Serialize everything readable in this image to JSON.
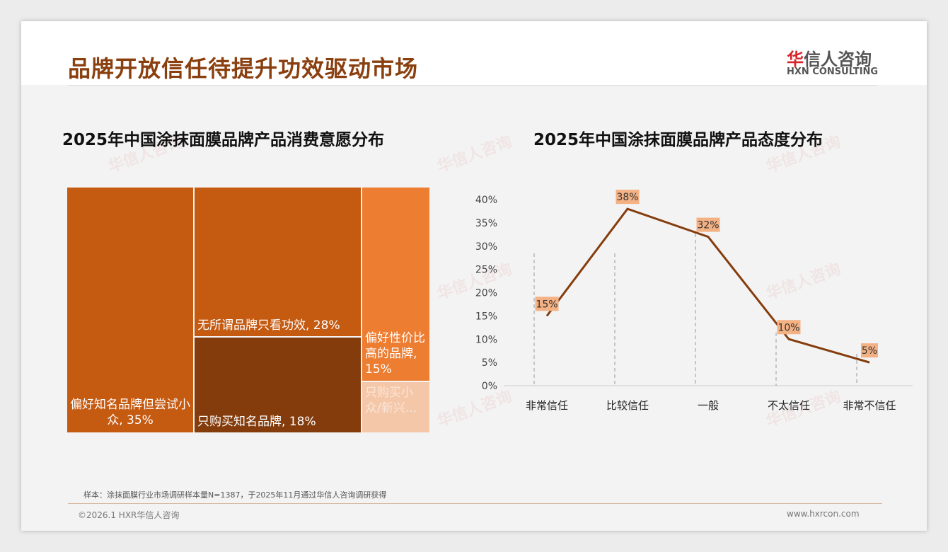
{
  "header": {
    "title": "品牌开放信任待提升功效驱动市场",
    "logo_cn_mark": "华",
    "logo_cn_rest": "信人咨询",
    "logo_en": "HXN CONSULTING"
  },
  "chart_data": [
    {
      "type": "treemap",
      "title": "2025年中国涂抹面膜品牌产品消费意愿分布",
      "items": [
        {
          "label": "偏好知名品牌但尝试小众, 35%",
          "value": 35,
          "color": "#c55a11"
        },
        {
          "label": "无所谓品牌只看功效, 28%",
          "value": 28,
          "color": "#c55a11"
        },
        {
          "label": "只购买知名品牌, 18%",
          "value": 18,
          "color": "#843c0c"
        },
        {
          "label": "偏好性价比高的品牌, 15%",
          "value": 15,
          "color": "#ed7d31"
        },
        {
          "label": "只购买小众/新兴...",
          "value": 4,
          "color": "#f4c7a9"
        }
      ]
    },
    {
      "type": "line",
      "title": "2025年中国涂抹面膜品牌产品态度分布",
      "categories": [
        "非常信任",
        "比较信任",
        "一般",
        "不太信任",
        "非常不信任"
      ],
      "values": [
        15,
        38,
        32,
        10,
        5
      ],
      "data_labels": [
        "15%",
        "38%",
        "32%",
        "10%",
        "5%"
      ],
      "yticks": [
        "0%",
        "5%",
        "10%",
        "15%",
        "20%",
        "25%",
        "30%",
        "35%",
        "40%"
      ],
      "ylim": [
        0,
        40
      ],
      "line_color": "#843c0c",
      "label_bg": "#f4b183"
    }
  ],
  "footer": {
    "note": "样本：涂抹面膜行业市场调研样本量N=1387，于2025年11月通过华信人咨询调研获得",
    "copyright": "©2026.1 HXR华信人咨询",
    "url": "www.hxrcon.com"
  }
}
